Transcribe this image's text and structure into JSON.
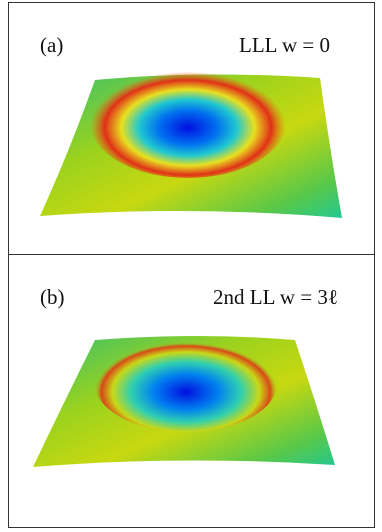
{
  "panels": [
    {
      "label": "(a)",
      "caption": "LLL w = 0"
    },
    {
      "label": "(b)",
      "caption": "2nd LL w = 3ℓ"
    }
  ]
}
